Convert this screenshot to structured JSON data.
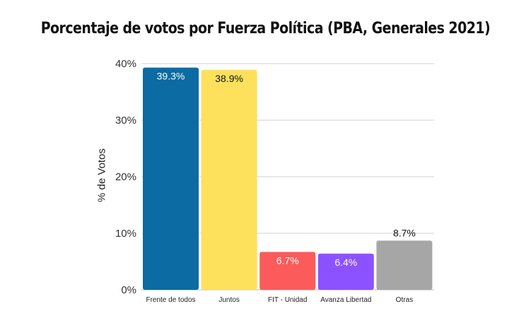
{
  "chart_data": {
    "type": "bar",
    "title": "Porcentaje de votos por Fuerza Política (PBA, Generales 2021)",
    "xlabel": "",
    "ylabel": "% de Votos",
    "ylim": [
      0,
      40
    ],
    "yticks": [
      0,
      10,
      20,
      30,
      40
    ],
    "ytick_labels": [
      "0%",
      "10%",
      "20%",
      "30%",
      "40%"
    ],
    "grid": true,
    "categories": [
      "Frente de todos",
      "Juntos",
      "FIT - Unidad",
      "Avanza Libertad",
      "Otras"
    ],
    "values": [
      39.3,
      38.9,
      6.7,
      6.4,
      8.7
    ],
    "data_labels": [
      "39.3%",
      "38.9%",
      "6.7%",
      "6.4%",
      "8.7%"
    ],
    "colors": [
      "#0b6ba2",
      "#fde05c",
      "#fb5b5b",
      "#8c52ff",
      "#a6a6a6"
    ],
    "label_colors": [
      "#ffffff",
      "#111111",
      "#ffffff",
      "#ffffff",
      "#111111"
    ],
    "label_position": [
      "inside",
      "inside",
      "inside",
      "inside",
      "above"
    ]
  }
}
